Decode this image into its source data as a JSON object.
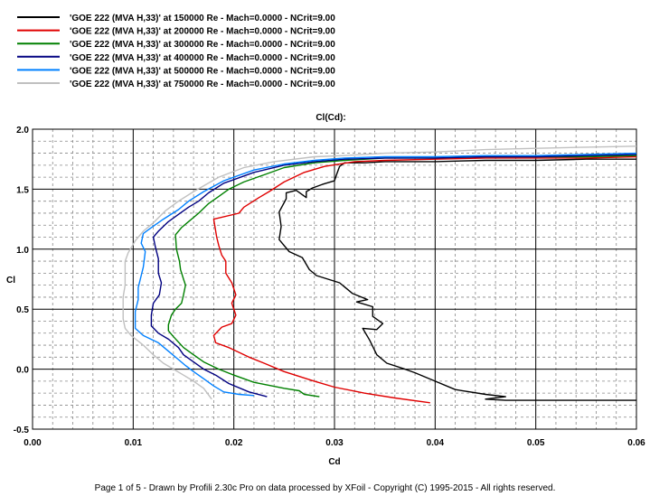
{
  "chart_data": {
    "type": "line",
    "title": "Cl(Cd):",
    "xlabel": "Cd",
    "ylabel": "Cl",
    "xlim": [
      0.0,
      0.06
    ],
    "ylim": [
      -0.5,
      2.0
    ],
    "xticks": [
      "0.00",
      "0.01",
      "0.02",
      "0.03",
      "0.04",
      "0.05",
      "0.06"
    ],
    "yticks": [
      "2.0",
      "1.5",
      "1.0",
      "0.5",
      "0.0",
      "-0.5"
    ],
    "grid": true,
    "legend_position": "top-left",
    "series": [
      {
        "name": "'GOE 222 (MVA H,33)' at 150000 Re - Mach=0.0000 - NCrit=9.00",
        "color": "#000000",
        "points": [
          [
            0.0605,
            1.75
          ],
          [
            0.055,
            1.75
          ],
          [
            0.05,
            1.74
          ],
          [
            0.045,
            1.74
          ],
          [
            0.04,
            1.73
          ],
          [
            0.035,
            1.73
          ],
          [
            0.033,
            1.72
          ],
          [
            0.031,
            1.72
          ],
          [
            0.0305,
            1.69
          ],
          [
            0.0302,
            1.62
          ],
          [
            0.03,
            1.57
          ],
          [
            0.0288,
            1.54
          ],
          [
            0.0278,
            1.51
          ],
          [
            0.0272,
            1.48
          ],
          [
            0.0272,
            1.43
          ],
          [
            0.0262,
            1.49
          ],
          [
            0.0252,
            1.47
          ],
          [
            0.0252,
            1.42
          ],
          [
            0.0245,
            1.31
          ],
          [
            0.0247,
            1.19
          ],
          [
            0.0245,
            1.08
          ],
          [
            0.0255,
            0.98
          ],
          [
            0.0268,
            0.93
          ],
          [
            0.0275,
            0.83
          ],
          [
            0.0282,
            0.78
          ],
          [
            0.0305,
            0.72
          ],
          [
            0.0318,
            0.63
          ],
          [
            0.0333,
            0.58
          ],
          [
            0.0322,
            0.56
          ],
          [
            0.0338,
            0.52
          ],
          [
            0.0338,
            0.44
          ],
          [
            0.0348,
            0.38
          ],
          [
            0.0342,
            0.33
          ],
          [
            0.0328,
            0.34
          ],
          [
            0.0335,
            0.24
          ],
          [
            0.0342,
            0.12
          ],
          [
            0.0352,
            0.05
          ],
          [
            0.037,
            0.0
          ],
          [
            0.038,
            -0.03
          ],
          [
            0.04,
            -0.1
          ],
          [
            0.042,
            -0.17
          ],
          [
            0.045,
            -0.21
          ],
          [
            0.047,
            -0.23
          ],
          [
            0.045,
            -0.25
          ],
          [
            0.047,
            -0.26
          ],
          [
            0.05,
            -0.26
          ],
          [
            0.055,
            -0.26
          ],
          [
            0.0605,
            -0.26
          ]
        ]
      },
      {
        "name": "'GOE 222 (MVA H,33)' at 200000 Re - Mach=0.0000 - NCrit=9.00",
        "color": "#e00000",
        "points": [
          [
            0.06,
            1.77
          ],
          [
            0.055,
            1.76
          ],
          [
            0.05,
            1.76
          ],
          [
            0.045,
            1.76
          ],
          [
            0.04,
            1.75
          ],
          [
            0.035,
            1.74
          ],
          [
            0.032,
            1.73
          ],
          [
            0.029,
            1.69
          ],
          [
            0.027,
            1.64
          ],
          [
            0.025,
            1.56
          ],
          [
            0.0235,
            1.48
          ],
          [
            0.0225,
            1.43
          ],
          [
            0.021,
            1.35
          ],
          [
            0.0205,
            1.3
          ],
          [
            0.018,
            1.25
          ],
          [
            0.0183,
            1.1
          ],
          [
            0.0185,
            1.03
          ],
          [
            0.0188,
            0.95
          ],
          [
            0.0192,
            0.9
          ],
          [
            0.0192,
            0.8
          ],
          [
            0.0198,
            0.72
          ],
          [
            0.0202,
            0.62
          ],
          [
            0.0198,
            0.55
          ],
          [
            0.0202,
            0.45
          ],
          [
            0.0198,
            0.38
          ],
          [
            0.0188,
            0.35
          ],
          [
            0.018,
            0.28
          ],
          [
            0.0182,
            0.22
          ],
          [
            0.0195,
            0.18
          ],
          [
            0.0215,
            0.1
          ],
          [
            0.023,
            0.05
          ],
          [
            0.025,
            -0.02
          ],
          [
            0.028,
            -0.1
          ],
          [
            0.03,
            -0.15
          ],
          [
            0.033,
            -0.2
          ],
          [
            0.036,
            -0.24
          ],
          [
            0.0395,
            -0.28
          ]
        ]
      },
      {
        "name": "'GOE 222 (MVA H,33)' at 300000 Re - Mach=0.0000 - NCrit=9.00",
        "color": "#008000",
        "points": [
          [
            0.06,
            1.78
          ],
          [
            0.055,
            1.77
          ],
          [
            0.05,
            1.77
          ],
          [
            0.045,
            1.77
          ],
          [
            0.04,
            1.76
          ],
          [
            0.035,
            1.76
          ],
          [
            0.031,
            1.74
          ],
          [
            0.028,
            1.72
          ],
          [
            0.025,
            1.68
          ],
          [
            0.023,
            1.62
          ],
          [
            0.021,
            1.56
          ],
          [
            0.0195,
            1.5
          ],
          [
            0.0185,
            1.44
          ],
          [
            0.0175,
            1.38
          ],
          [
            0.0165,
            1.3
          ],
          [
            0.0155,
            1.23
          ],
          [
            0.0148,
            1.18
          ],
          [
            0.0142,
            1.12
          ],
          [
            0.0143,
            1.0
          ],
          [
            0.0146,
            0.9
          ],
          [
            0.0147,
            0.83
          ],
          [
            0.015,
            0.75
          ],
          [
            0.0152,
            0.7
          ],
          [
            0.015,
            0.62
          ],
          [
            0.0148,
            0.55
          ],
          [
            0.0142,
            0.5
          ],
          [
            0.0138,
            0.45
          ],
          [
            0.0135,
            0.37
          ],
          [
            0.0135,
            0.32
          ],
          [
            0.014,
            0.27
          ],
          [
            0.015,
            0.18
          ],
          [
            0.016,
            0.12
          ],
          [
            0.017,
            0.06
          ],
          [
            0.0185,
            0.0
          ],
          [
            0.02,
            -0.05
          ],
          [
            0.022,
            -0.11
          ],
          [
            0.025,
            -0.16
          ],
          [
            0.0265,
            -0.18
          ],
          [
            0.027,
            -0.21
          ],
          [
            0.0285,
            -0.23
          ]
        ]
      },
      {
        "name": "'GOE 222 (MVA H,33)' at 400000 Re - Mach=0.0000 - NCrit=9.00",
        "color": "#000080",
        "points": [
          [
            0.06,
            1.79
          ],
          [
            0.055,
            1.78
          ],
          [
            0.05,
            1.77
          ],
          [
            0.045,
            1.77
          ],
          [
            0.04,
            1.76
          ],
          [
            0.035,
            1.76
          ],
          [
            0.031,
            1.75
          ],
          [
            0.028,
            1.73
          ],
          [
            0.025,
            1.7
          ],
          [
            0.022,
            1.64
          ],
          [
            0.019,
            1.55
          ],
          [
            0.0175,
            1.47
          ],
          [
            0.0165,
            1.4
          ],
          [
            0.0155,
            1.35
          ],
          [
            0.0145,
            1.29
          ],
          [
            0.0135,
            1.23
          ],
          [
            0.0125,
            1.15
          ],
          [
            0.012,
            1.1
          ],
          [
            0.0122,
            1.02
          ],
          [
            0.0125,
            0.92
          ],
          [
            0.0125,
            0.8
          ],
          [
            0.0128,
            0.72
          ],
          [
            0.0126,
            0.62
          ],
          [
            0.012,
            0.55
          ],
          [
            0.0118,
            0.45
          ],
          [
            0.0118,
            0.36
          ],
          [
            0.0125,
            0.3
          ],
          [
            0.0135,
            0.25
          ],
          [
            0.0145,
            0.18
          ],
          [
            0.015,
            0.12
          ],
          [
            0.016,
            0.06
          ],
          [
            0.017,
            0.0
          ],
          [
            0.0182,
            -0.05
          ],
          [
            0.0195,
            -0.12
          ],
          [
            0.0215,
            -0.19
          ],
          [
            0.0233,
            -0.23
          ]
        ]
      },
      {
        "name": "'GOE 222 (MVA H,33)' at 500000 Re - Mach=0.0000 - NCrit=9.00",
        "color": "#0080ff",
        "points": [
          [
            0.06,
            1.8
          ],
          [
            0.055,
            1.79
          ],
          [
            0.05,
            1.78
          ],
          [
            0.045,
            1.78
          ],
          [
            0.04,
            1.77
          ],
          [
            0.035,
            1.77
          ],
          [
            0.031,
            1.76
          ],
          [
            0.028,
            1.74
          ],
          [
            0.025,
            1.71
          ],
          [
            0.022,
            1.66
          ],
          [
            0.019,
            1.57
          ],
          [
            0.017,
            1.48
          ],
          [
            0.0155,
            1.4
          ],
          [
            0.0145,
            1.33
          ],
          [
            0.013,
            1.25
          ],
          [
            0.0118,
            1.18
          ],
          [
            0.011,
            1.13
          ],
          [
            0.0108,
            1.05
          ],
          [
            0.0112,
            0.98
          ],
          [
            0.011,
            0.85
          ],
          [
            0.0108,
            0.78
          ],
          [
            0.0105,
            0.68
          ],
          [
            0.0105,
            0.58
          ],
          [
            0.0102,
            0.48
          ],
          [
            0.0102,
            0.4
          ],
          [
            0.0102,
            0.34
          ],
          [
            0.011,
            0.28
          ],
          [
            0.0125,
            0.22
          ],
          [
            0.0135,
            0.15
          ],
          [
            0.0145,
            0.08
          ],
          [
            0.0152,
            0.03
          ],
          [
            0.016,
            -0.02
          ],
          [
            0.017,
            -0.08
          ],
          [
            0.018,
            -0.14
          ],
          [
            0.019,
            -0.19
          ],
          [
            0.0205,
            -0.21
          ],
          [
            0.022,
            -0.22
          ]
        ]
      },
      {
        "name": "'GOE 222 (MVA H,33)' at 750000 Re - Mach=0.0000 - NCrit=9.00",
        "color": "#c0c0c0",
        "points": [
          [
            0.061,
            1.86
          ],
          [
            0.055,
            1.85
          ],
          [
            0.05,
            1.84
          ],
          [
            0.045,
            1.83
          ],
          [
            0.04,
            1.81
          ],
          [
            0.035,
            1.8
          ],
          [
            0.031,
            1.78
          ],
          [
            0.028,
            1.77
          ],
          [
            0.024,
            1.73
          ],
          [
            0.021,
            1.68
          ],
          [
            0.0185,
            1.6
          ],
          [
            0.016,
            1.48
          ],
          [
            0.0145,
            1.4
          ],
          [
            0.0132,
            1.32
          ],
          [
            0.012,
            1.22
          ],
          [
            0.011,
            1.15
          ],
          [
            0.0102,
            1.07
          ],
          [
            0.0095,
            0.97
          ],
          [
            0.0092,
            0.9
          ],
          [
            0.0092,
            0.8
          ],
          [
            0.0092,
            0.7
          ],
          [
            0.009,
            0.6
          ],
          [
            0.009,
            0.5
          ],
          [
            0.009,
            0.42
          ],
          [
            0.0092,
            0.34
          ],
          [
            0.0098,
            0.28
          ],
          [
            0.011,
            0.2
          ],
          [
            0.012,
            0.12
          ],
          [
            0.013,
            0.05
          ],
          [
            0.014,
            0.0
          ],
          [
            0.015,
            -0.05
          ],
          [
            0.016,
            -0.1
          ],
          [
            0.017,
            -0.16
          ],
          [
            0.0178,
            -0.25
          ]
        ]
      }
    ]
  },
  "footer": {
    "text": "Page 1 of 5   -   Drawn by Profili 2.30c Pro on data processed by  XFoil - Copyright (C) 1995-2015 - All rights reserved."
  }
}
